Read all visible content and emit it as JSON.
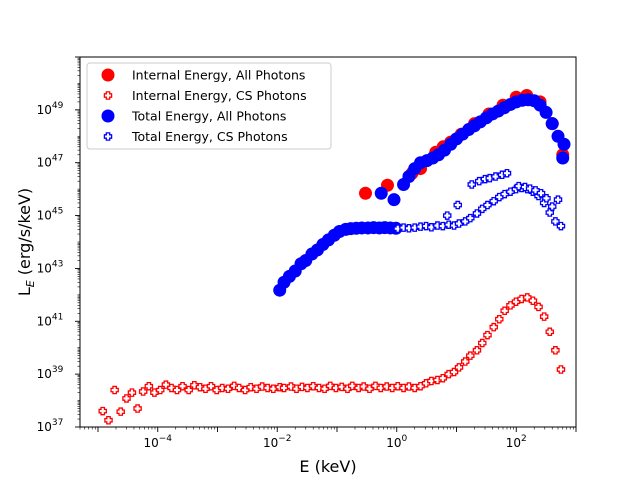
{
  "chart_data": {
    "type": "scatter",
    "xscale": "log",
    "yscale": "log",
    "xlabel": "E (keV)",
    "ylabel": "L_E (erg/s/keV)",
    "xlim": [
      5e-06,
      1000
    ],
    "ylim": [
      1e+37,
      1e+51
    ],
    "xticks": [
      {
        "v": 0.0001,
        "base": "10",
        "exp": "−4"
      },
      {
        "v": 0.01,
        "base": "10",
        "exp": "−2"
      },
      {
        "v": 1,
        "base": "10",
        "exp": "0"
      },
      {
        "v": 100,
        "base": "10",
        "exp": "2"
      }
    ],
    "yticks": [
      {
        "v": 1e+37,
        "base": "10",
        "exp": "37"
      },
      {
        "v": 1e+39,
        "base": "10",
        "exp": "39"
      },
      {
        "v": 1e+41,
        "base": "10",
        "exp": "41"
      },
      {
        "v": 1e+43,
        "base": "10",
        "exp": "43"
      },
      {
        "v": 1e+45,
        "base": "10",
        "exp": "45"
      },
      {
        "v": 1e+47,
        "base": "10",
        "exp": "47"
      },
      {
        "v": 1e+49,
        "base": "10",
        "exp": "49"
      }
    ],
    "legend_position": "top-left",
    "series": [
      {
        "name": "Internal Energy, All Photons",
        "color": "#ff0000",
        "marker": "circle",
        "points": [
          [
            0.3,
            7e+45
          ],
          [
            0.7,
            1.4e+46
          ],
          [
            1.8,
            4e+46
          ],
          [
            2.5,
            6e+46
          ],
          [
            4.5,
            2.5e+47
          ],
          [
            6,
            4e+47
          ],
          [
            8,
            6e+47
          ],
          [
            12,
            1.2e+48
          ],
          [
            20,
            3e+48
          ],
          [
            35,
            7e+48
          ],
          [
            60,
            1.5e+49
          ],
          [
            100,
            3e+49
          ],
          [
            150,
            3.5e+49
          ],
          [
            250,
            2e+49
          ],
          [
            400,
            3e+48
          ],
          [
            600,
            2e+47
          ]
        ]
      },
      {
        "name": "Internal Energy, CS Photons",
        "color": "#ff0000",
        "marker": "plus",
        "points": [
          [
            1.2e-05,
            4e+37
          ],
          [
            1.5e-05,
            1.8e+37
          ],
          [
            1.9e-05,
            2.5e+38
          ],
          [
            2.4e-05,
            3.8e+37
          ],
          [
            3e-05,
            1.2e+38
          ],
          [
            3.7e-05,
            2e+38
          ],
          [
            4.6e-05,
            5e+37
          ],
          [
            5.7e-05,
            2.2e+38
          ],
          [
            7.1e-05,
            3.5e+38
          ],
          [
            8.8e-05,
            2e+38
          ],
          [
            0.00011,
            2.5e+38
          ],
          [
            0.000137,
            4e+38
          ],
          [
            0.00017,
            3e+38
          ],
          [
            0.00021,
            2.5e+38
          ],
          [
            0.00026,
            3.5e+38
          ],
          [
            0.00033,
            2.5e+38
          ],
          [
            0.00041,
            3.8e+38
          ],
          [
            0.00051,
            3.2e+38
          ],
          [
            0.00063,
            2.8e+38
          ],
          [
            0.00078,
            3.5e+38
          ],
          [
            0.00097,
            2.5e+38
          ],
          [
            0.0012,
            3e+38
          ],
          [
            0.0015,
            2.8e+38
          ],
          [
            0.0019,
            3.6e+38
          ],
          [
            0.0023,
            3e+38
          ],
          [
            0.0029,
            2.5e+38
          ],
          [
            0.0036,
            3.2e+38
          ],
          [
            0.0045,
            2.8e+38
          ],
          [
            0.0056,
            3.4e+38
          ],
          [
            0.0069,
            3e+38
          ],
          [
            0.0086,
            2.8e+38
          ],
          [
            0.011,
            3.2e+38
          ],
          [
            0.013,
            3e+38
          ],
          [
            0.017,
            3.4e+38
          ],
          [
            0.021,
            2.8e+38
          ],
          [
            0.026,
            3.3e+38
          ],
          [
            0.032,
            3e+38
          ],
          [
            0.04,
            3.5e+38
          ],
          [
            0.05,
            3e+38
          ],
          [
            0.062,
            2.8e+38
          ],
          [
            0.077,
            3.6e+38
          ],
          [
            0.096,
            3e+38
          ],
          [
            0.12,
            3.3e+38
          ],
          [
            0.15,
            2.8e+38
          ],
          [
            0.18,
            3.6e+38
          ],
          [
            0.23,
            3e+38
          ],
          [
            0.28,
            3.4e+38
          ],
          [
            0.35,
            2.8e+38
          ],
          [
            0.44,
            3.6e+38
          ],
          [
            0.54,
            3e+38
          ],
          [
            0.68,
            3.4e+38
          ],
          [
            0.84,
            3e+38
          ],
          [
            1.04,
            3.5e+38
          ],
          [
            1.3,
            3e+38
          ],
          [
            1.6,
            3.4e+38
          ],
          [
            2,
            3e+38
          ],
          [
            2.5,
            3.5e+38
          ],
          [
            3.1,
            4.5e+38
          ],
          [
            3.8,
            5.5e+38
          ],
          [
            4.8,
            6e+38
          ],
          [
            5.9,
            7e+38
          ],
          [
            7.4,
            1e+39
          ],
          [
            9.1,
            1.2e+39
          ],
          [
            11,
            1.8e+39
          ],
          [
            14,
            3e+39
          ],
          [
            17,
            5e+39
          ],
          [
            22,
            8e+39
          ],
          [
            27,
            1.5e+40
          ],
          [
            33,
            3e+40
          ],
          [
            42,
            6e+40
          ],
          [
            52,
            1.2e+41
          ],
          [
            64,
            2.5e+41
          ],
          [
            80,
            4e+41
          ],
          [
            99,
            5.5e+41
          ],
          [
            123,
            7e+41
          ],
          [
            153,
            8e+41
          ],
          [
            190,
            6e+41
          ],
          [
            236,
            3.5e+41
          ],
          [
            293,
            1.5e+41
          ],
          [
            364,
            4e+40
          ],
          [
            452,
            8e+39
          ],
          [
            560,
            1.5e+39
          ]
        ]
      },
      {
        "name": "Total Energy, All Photons",
        "color": "#0000ff",
        "marker": "circle",
        "points": [
          [
            0.011,
            1.5e+42
          ],
          [
            0.013,
            3e+42
          ],
          [
            0.016,
            5e+42
          ],
          [
            0.02,
            8e+42
          ],
          [
            0.025,
            1.5e+43
          ],
          [
            0.03,
            2e+43
          ],
          [
            0.038,
            3.5e+43
          ],
          [
            0.047,
            5e+43
          ],
          [
            0.058,
            8e+43
          ],
          [
            0.072,
            1.2e+44
          ],
          [
            0.09,
            1.8e+44
          ],
          [
            0.11,
            2.5e+44
          ],
          [
            0.14,
            3e+44
          ],
          [
            0.17,
            3.2e+44
          ],
          [
            0.21,
            3.3e+44
          ],
          [
            0.26,
            3.4e+44
          ],
          [
            0.33,
            3.4e+44
          ],
          [
            0.41,
            3.5e+44
          ],
          [
            0.51,
            3.4e+44
          ],
          [
            0.63,
            3.5e+44
          ],
          [
            0.78,
            3.4e+44
          ],
          [
            0.97,
            3.3e+44
          ],
          [
            0.55,
            7e+45
          ],
          [
            0.9,
            4e+45
          ],
          [
            1.3,
            1.5e+46
          ],
          [
            1.6,
            3e+46
          ],
          [
            2,
            6e+46
          ],
          [
            2.5,
            1e+47
          ],
          [
            3.2,
            1.2e+47
          ],
          [
            4,
            1.5e+47
          ],
          [
            5,
            2e+47
          ],
          [
            6.3,
            3e+47
          ],
          [
            8,
            5e+47
          ],
          [
            10,
            8e+47
          ],
          [
            12.6,
            1.2e+48
          ],
          [
            16,
            1.8e+48
          ],
          [
            20,
            2.5e+48
          ],
          [
            25,
            3.5e+48
          ],
          [
            31.6,
            5e+48
          ],
          [
            40,
            7e+48
          ],
          [
            50,
            9e+48
          ],
          [
            63,
            1.2e+49
          ],
          [
            80,
            1.6e+49
          ],
          [
            100,
            2e+49
          ],
          [
            126,
            2.3e+49
          ],
          [
            158,
            2.4e+49
          ],
          [
            200,
            2.2e+49
          ],
          [
            251,
            1.5e+49
          ],
          [
            316,
            8e+48
          ],
          [
            400,
            3e+48
          ],
          [
            500,
            1e+48
          ],
          [
            630,
            5e+47
          ],
          [
            600,
            1.5e+47
          ]
        ]
      },
      {
        "name": "Total Energy, CS Photons",
        "color": "#0000ff",
        "marker": "plus",
        "points": [
          [
            1.04,
            3.2e+44
          ],
          [
            1.3,
            3.5e+44
          ],
          [
            1.6,
            3.3e+44
          ],
          [
            2,
            3.5e+44
          ],
          [
            2.5,
            3.8e+44
          ],
          [
            3.1,
            4e+44
          ],
          [
            3.8,
            3.6e+44
          ],
          [
            4.8,
            4.2e+44
          ],
          [
            5.9,
            4e+44
          ],
          [
            7.4,
            4.5e+44
          ],
          [
            9.1,
            4.2e+44
          ],
          [
            11,
            5e+44
          ],
          [
            14,
            6e+44
          ],
          [
            17,
            8e+44
          ],
          [
            22,
            1.2e+45
          ],
          [
            27,
            1.8e+45
          ],
          [
            33,
            2.5e+45
          ],
          [
            42,
            3.5e+45
          ],
          [
            52,
            5e+45
          ],
          [
            64,
            6.5e+45
          ],
          [
            80,
            8e+45
          ],
          [
            99,
            1e+46
          ],
          [
            123,
            1.1e+46
          ],
          [
            153,
            1e+46
          ],
          [
            190,
            8e+45
          ],
          [
            236,
            5.5e+45
          ],
          [
            293,
            3e+45
          ],
          [
            364,
            1.3e+45
          ],
          [
            452,
            6e+44
          ],
          [
            560,
            4e+44
          ],
          [
            7,
            1e+45
          ],
          [
            10.5,
            2.5e+45
          ],
          [
            18,
            1.5e+46
          ],
          [
            24,
            2e+46
          ],
          [
            30,
            2.4e+46
          ],
          [
            36,
            2.6e+46
          ],
          [
            45,
            3e+46
          ],
          [
            58,
            3.5e+46
          ],
          [
            70,
            4e+46
          ],
          [
            110,
            1.3e+46
          ],
          [
            140,
            1.2e+46
          ],
          [
            170,
            1.05e+46
          ],
          [
            210,
            9e+45
          ],
          [
            260,
            7e+45
          ],
          [
            320,
            4.5e+45
          ],
          [
            400,
            2.2e+45
          ],
          [
            500,
            4e+45
          ]
        ]
      }
    ]
  }
}
